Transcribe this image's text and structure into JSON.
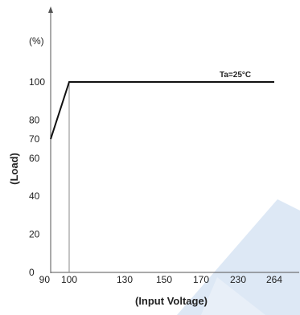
{
  "chart_data": {
    "type": "line",
    "xlabel": "(Input Voltage)",
    "ylabel": "(Load)",
    "y_unit": "(%)",
    "annotation": "Ta=25°C",
    "x_ticks": [
      "90",
      "100",
      "130",
      "150",
      "170",
      "230",
      "264"
    ],
    "y_ticks": [
      0,
      20,
      40,
      60,
      70,
      80,
      100
    ],
    "ylim": [
      0,
      100
    ],
    "series": [
      {
        "x": [
          "90",
          "100",
          "264"
        ],
        "y": [
          70,
          100,
          100
        ]
      }
    ],
    "colors": {
      "line": "#111111",
      "axis": "#555555",
      "watermark": "#dde8f5"
    },
    "grid": false,
    "legend": "none"
  }
}
